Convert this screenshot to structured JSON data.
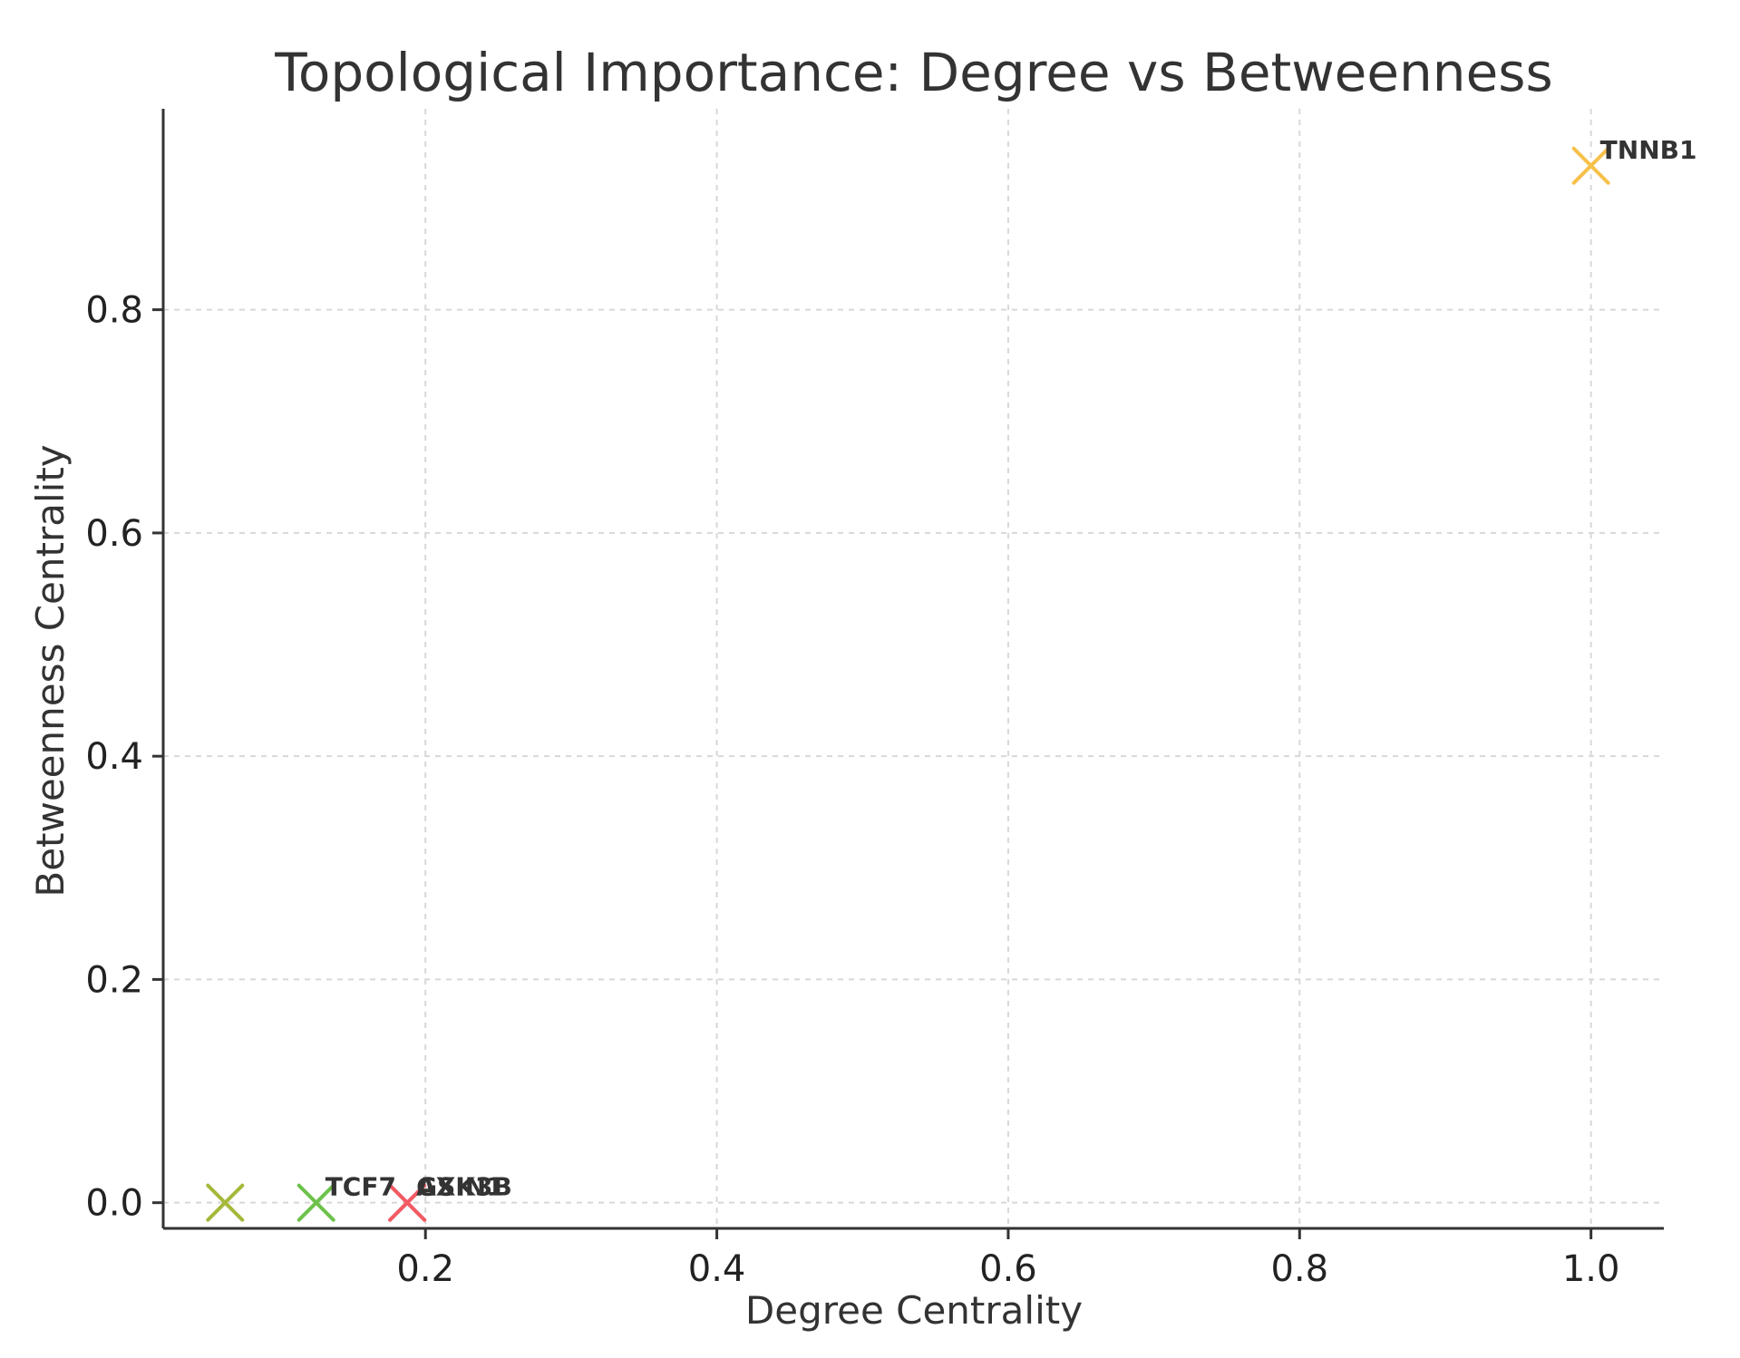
{
  "chart_data": {
    "type": "scatter",
    "title": "Topological Importance: Degree vs Betweenness",
    "xlabel": "Degree Centrality",
    "ylabel": "Betweenness Centrality",
    "xlim": [
      0.02,
      1.05
    ],
    "ylim": [
      -0.023,
      0.98
    ],
    "grid": true,
    "x_ticks": [
      {
        "value": 0.2,
        "label": "0.2"
      },
      {
        "value": 0.4,
        "label": "0.4"
      },
      {
        "value": 0.6,
        "label": "0.6"
      },
      {
        "value": 0.8,
        "label": "0.8"
      },
      {
        "value": 1.0,
        "label": "1.0"
      }
    ],
    "y_ticks": [
      {
        "value": 0.0,
        "label": "0.0"
      },
      {
        "value": 0.2,
        "label": "0.2"
      },
      {
        "value": 0.4,
        "label": "0.4"
      },
      {
        "value": 0.6,
        "label": "0.6"
      },
      {
        "value": 0.8,
        "label": "0.8"
      }
    ],
    "points": [
      {
        "x": 1.0,
        "y": 0.929,
        "label": "TNNB1",
        "color": "#f7c04a"
      },
      {
        "x": 0.0625,
        "y": 0.0,
        "label": "",
        "color": "#a6b83a"
      },
      {
        "x": 0.125,
        "y": 0.0,
        "label": "TCF7",
        "color": "#6cc24a"
      },
      {
        "x": 0.1875,
        "y": 0.0,
        "label": "AXIN1",
        "color": "#f27ab0"
      },
      {
        "x": 0.1875,
        "y": 0.0,
        "label": "GSK3B",
        "color": "#f25b62"
      }
    ]
  }
}
